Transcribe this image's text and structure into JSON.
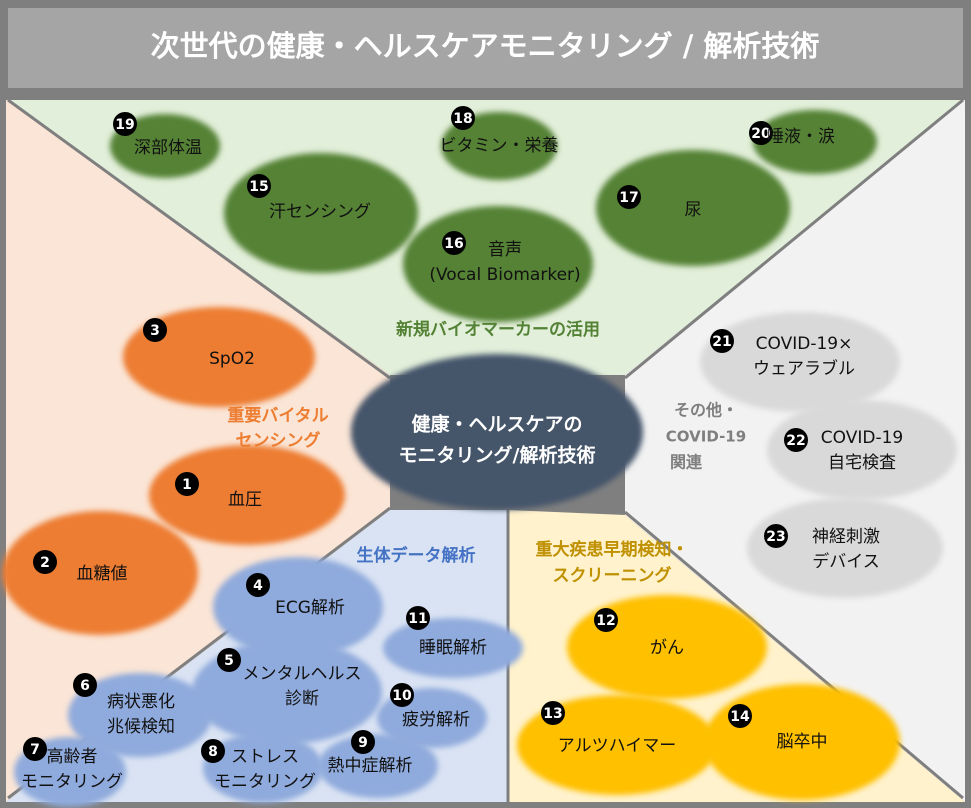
{
  "title": "次世代の健康・ヘルスケアモニタリング / 解析技術",
  "center": {
    "line1": "健康・ヘルスケアの",
    "line2": "モニタリング/解析技術"
  },
  "colors": {
    "green": "#548235",
    "orange": "#ed7d31",
    "blue": "#8faadc",
    "yellow": "#ffc000",
    "gray": "#d9d9d9",
    "center": "#44546a"
  },
  "categories": {
    "biomarker": "新規バイオマーカーの活用",
    "vital": [
      "重要バイタル",
      "センシング"
    ],
    "data": "生体データ解析",
    "disease": [
      "重大疾患早期検知・",
      "スクリーニング"
    ],
    "other": [
      "その他・",
      "COVID-19",
      "関連"
    ]
  },
  "items": {
    "i1": {
      "num": "1",
      "lines": [
        "血圧"
      ]
    },
    "i2": {
      "num": "2",
      "lines": [
        "血糖値"
      ]
    },
    "i3": {
      "num": "3",
      "lines": [
        "SpO2"
      ]
    },
    "i4": {
      "num": "4",
      "lines": [
        "ECG解析"
      ]
    },
    "i5": {
      "num": "5",
      "lines": [
        "メンタルヘルス",
        "診断"
      ]
    },
    "i6": {
      "num": "6",
      "lines": [
        "病状悪化",
        "兆候検知"
      ]
    },
    "i7": {
      "num": "7",
      "lines": [
        "高齢者",
        "モニタリング"
      ]
    },
    "i8": {
      "num": "8",
      "lines": [
        "ストレス",
        "モニタリング"
      ]
    },
    "i9": {
      "num": "9",
      "lines": [
        "熱中症解析"
      ]
    },
    "i10": {
      "num": "10",
      "lines": [
        "疲労解析"
      ]
    },
    "i11": {
      "num": "11",
      "lines": [
        "睡眠解析"
      ]
    },
    "i12": {
      "num": "12",
      "lines": [
        "がん"
      ]
    },
    "i13": {
      "num": "13",
      "lines": [
        "アルツハイマー"
      ]
    },
    "i14": {
      "num": "14",
      "lines": [
        "脳卒中"
      ]
    },
    "i15": {
      "num": "15",
      "lines": [
        "汗センシング"
      ]
    },
    "i16": {
      "num": "16",
      "lines": [
        "音声",
        "(Vocal Biomarker)"
      ]
    },
    "i17": {
      "num": "17",
      "lines": [
        "尿"
      ]
    },
    "i18": {
      "num": "18",
      "lines": [
        "ビタミン・栄養"
      ]
    },
    "i19": {
      "num": "19",
      "lines": [
        "深部体温"
      ]
    },
    "i20": {
      "num": "20",
      "lines": [
        "唾液・涙"
      ]
    },
    "i21": {
      "num": "21",
      "lines": [
        "COVID-19×",
        "ウェアラブル"
      ]
    },
    "i22": {
      "num": "22",
      "lines": [
        "COVID-19",
        "自宅検査"
      ]
    },
    "i23": {
      "num": "23",
      "lines": [
        "神経刺激",
        "デバイス"
      ]
    }
  }
}
